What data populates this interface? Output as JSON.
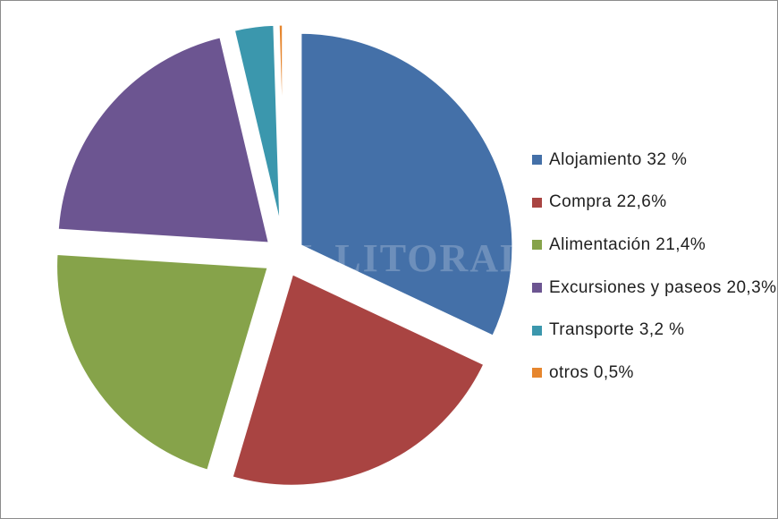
{
  "chart_data": {
    "type": "pie",
    "title": "",
    "legend_position": "right",
    "slices": [
      {
        "label": "Alojamiento 32 %",
        "value": 32,
        "color": "#4470a8"
      },
      {
        "label": "Compra 22,6%",
        "value": 22.6,
        "color": "#a94442"
      },
      {
        "label": "Alimentación 21,4%",
        "value": 21.4,
        "color": "#86a34a"
      },
      {
        "label": "Excursiones y paseos 20,3%",
        "value": 20.3,
        "color": "#6c5591"
      },
      {
        "label": "Transporte 3,2 %",
        "value": 3.2,
        "color": "#3b97ad"
      },
      {
        "label": "otros 0,5%",
        "value": 0.5,
        "color": "#e6862e"
      }
    ]
  },
  "watermark": "EL LITORAL"
}
